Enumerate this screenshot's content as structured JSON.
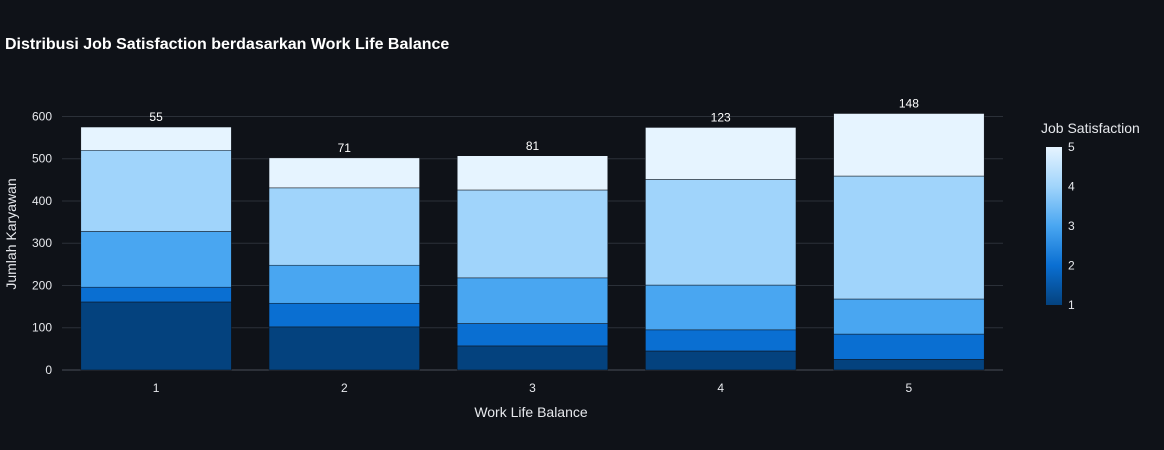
{
  "chart_data": {
    "type": "bar",
    "stacked": true,
    "title": "Distribusi Job Satisfaction berdasarkan Work Life Balance",
    "xlabel": "Work Life Balance",
    "ylabel": "Jumlah Karyawan",
    "categories": [
      "1",
      "2",
      "3",
      "4",
      "5"
    ],
    "ylim": [
      0,
      620
    ],
    "yticks": [
      0,
      100,
      200,
      300,
      400,
      500,
      600
    ],
    "grid": true,
    "series": [
      {
        "name": "1",
        "color": "#04427e",
        "values": [
          161,
          102,
          57,
          45,
          25
        ]
      },
      {
        "name": "2",
        "color": "#0a6fd2",
        "values": [
          35,
          56,
          53,
          50,
          60
        ]
      },
      {
        "name": "3",
        "color": "#49a6f1",
        "values": [
          132,
          90,
          108,
          106,
          83
        ]
      },
      {
        "name": "4",
        "color": "#a0d4fb",
        "values": [
          192,
          183,
          208,
          250,
          291
        ]
      },
      {
        "name": "5",
        "color": "#e6f4ff",
        "values": [
          55,
          71,
          81,
          123,
          148
        ]
      }
    ],
    "top_labels": [
      "55",
      "71",
      "81",
      "123",
      "148"
    ],
    "colorbar": {
      "title": "Job Satisfaction",
      "ticks": [
        "1",
        "2",
        "3",
        "4",
        "5"
      ],
      "colors": [
        "#04427e",
        "#0a6fd2",
        "#49a6f1",
        "#a0d4fb",
        "#e6f4ff"
      ]
    }
  }
}
